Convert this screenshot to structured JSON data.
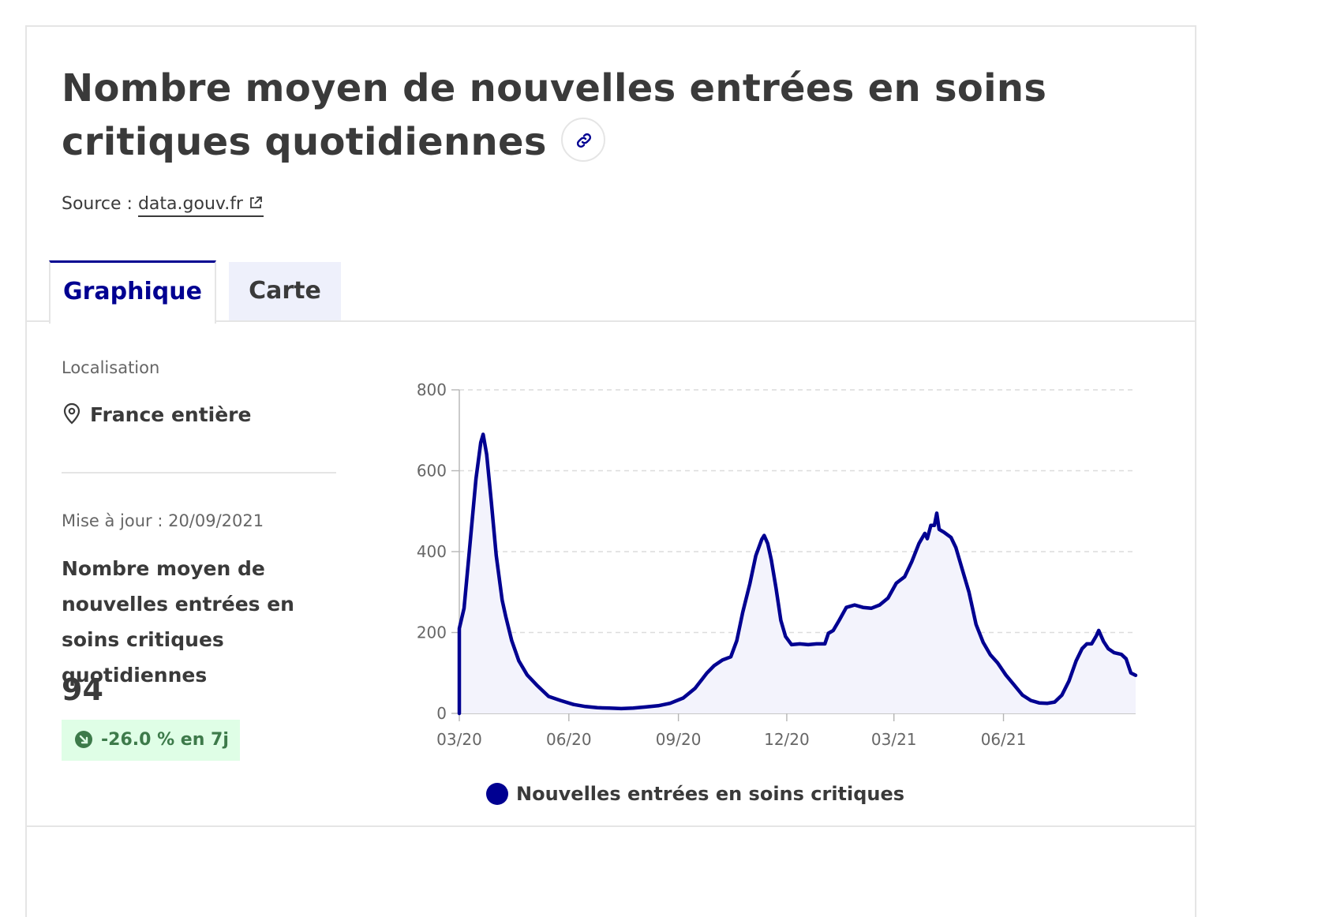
{
  "header": {
    "title": "Nombre moyen de nouvelles entrées en soins critiques quotidiennes",
    "source_label": "Source :",
    "source_link": "data.gouv.fr"
  },
  "tabs": [
    {
      "label": "Graphique",
      "active": true
    },
    {
      "label": "Carte",
      "active": false
    }
  ],
  "sidebar": {
    "location_label": "Localisation",
    "location_value": "France entière",
    "update_text": "Mise à jour : 20/09/2021",
    "indicator_name": "Nombre moyen de nouvelles entrées en soins critiques quotidiennes",
    "value": "94",
    "trend": "-26.0 % en 7j"
  },
  "colors": {
    "accent": "#000091",
    "series": "#000091",
    "fill": "#f3f3fc",
    "trend_bg": "#dffee6",
    "trend_text": "#3d7a4a"
  },
  "icons": {
    "link": "link-icon",
    "external": "external-link-icon",
    "location": "map-pin-icon",
    "trend": "arrow-down-right-icon"
  },
  "chart_data": {
    "type": "area",
    "title": "",
    "xlabel": "",
    "ylabel": "",
    "ylim": [
      0,
      800
    ],
    "yticks": [
      0,
      200,
      400,
      600,
      800
    ],
    "xticks": [
      "03/20",
      "06/20",
      "09/20",
      "12/20",
      "03/21",
      "06/21"
    ],
    "grid": "horizontal-dashed",
    "legend_position": "bottom",
    "series": [
      {
        "name": "Nouvelles entrées en soins critiques",
        "points": [
          [
            "2020-03-01",
            0
          ],
          [
            "2020-03-01",
            210
          ],
          [
            "2020-03-05",
            260
          ],
          [
            "2020-03-10",
            420
          ],
          [
            "2020-03-15",
            580
          ],
          [
            "2020-03-19",
            670
          ],
          [
            "2020-03-21",
            690
          ],
          [
            "2020-03-24",
            640
          ],
          [
            "2020-03-28",
            520
          ],
          [
            "2020-04-01",
            390
          ],
          [
            "2020-04-06",
            280
          ],
          [
            "2020-04-09",
            240
          ],
          [
            "2020-04-14",
            180
          ],
          [
            "2020-04-20",
            130
          ],
          [
            "2020-04-27",
            95
          ],
          [
            "2020-05-05",
            70
          ],
          [
            "2020-05-15",
            42
          ],
          [
            "2020-05-25",
            32
          ],
          [
            "2020-06-05",
            22
          ],
          [
            "2020-06-15",
            17
          ],
          [
            "2020-06-25",
            14
          ],
          [
            "2020-07-05",
            13
          ],
          [
            "2020-07-15",
            12
          ],
          [
            "2020-07-25",
            13
          ],
          [
            "2020-08-05",
            16
          ],
          [
            "2020-08-15",
            19
          ],
          [
            "2020-08-25",
            25
          ],
          [
            "2020-09-05",
            38
          ],
          [
            "2020-09-15",
            62
          ],
          [
            "2020-09-25",
            100
          ],
          [
            "2020-10-01",
            118
          ],
          [
            "2020-10-08",
            132
          ],
          [
            "2020-10-15",
            140
          ],
          [
            "2020-10-20",
            180
          ],
          [
            "2020-10-25",
            250
          ],
          [
            "2020-10-31",
            320
          ],
          [
            "2020-11-05",
            390
          ],
          [
            "2020-11-10",
            430
          ],
          [
            "2020-11-12",
            440
          ],
          [
            "2020-11-15",
            420
          ],
          [
            "2020-11-18",
            380
          ],
          [
            "2020-11-22",
            310
          ],
          [
            "2020-11-26",
            230
          ],
          [
            "2020-11-30",
            190
          ],
          [
            "2020-12-05",
            170
          ],
          [
            "2020-12-12",
            172
          ],
          [
            "2020-12-19",
            170
          ],
          [
            "2020-12-26",
            172
          ],
          [
            "2021-01-02",
            172
          ],
          [
            "2021-01-05",
            198
          ],
          [
            "2021-01-09",
            205
          ],
          [
            "2021-01-14",
            230
          ],
          [
            "2021-01-20",
            262
          ],
          [
            "2021-01-27",
            268
          ],
          [
            "2021-02-03",
            262
          ],
          [
            "2021-02-10",
            260
          ],
          [
            "2021-02-17",
            268
          ],
          [
            "2021-02-24",
            285
          ],
          [
            "2021-03-03",
            322
          ],
          [
            "2021-03-10",
            338
          ],
          [
            "2021-03-16",
            375
          ],
          [
            "2021-03-22",
            420
          ],
          [
            "2021-03-27",
            445
          ],
          [
            "2021-03-29",
            432
          ],
          [
            "2021-04-01",
            465
          ],
          [
            "2021-04-04",
            465
          ],
          [
            "2021-04-06",
            495
          ],
          [
            "2021-04-08",
            455
          ],
          [
            "2021-04-12",
            448
          ],
          [
            "2021-04-18",
            435
          ],
          [
            "2021-04-22",
            410
          ],
          [
            "2021-04-27",
            360
          ],
          [
            "2021-05-03",
            300
          ],
          [
            "2021-05-09",
            220
          ],
          [
            "2021-05-15",
            175
          ],
          [
            "2021-05-21",
            145
          ],
          [
            "2021-05-27",
            125
          ],
          [
            "2021-06-03",
            95
          ],
          [
            "2021-06-10",
            70
          ],
          [
            "2021-06-17",
            45
          ],
          [
            "2021-06-24",
            32
          ],
          [
            "2021-07-01",
            26
          ],
          [
            "2021-07-08",
            25
          ],
          [
            "2021-07-14",
            28
          ],
          [
            "2021-07-20",
            45
          ],
          [
            "2021-07-26",
            80
          ],
          [
            "2021-08-01",
            130
          ],
          [
            "2021-08-06",
            160
          ],
          [
            "2021-08-10",
            172
          ],
          [
            "2021-08-14",
            172
          ],
          [
            "2021-08-18",
            192
          ],
          [
            "2021-08-20",
            205
          ],
          [
            "2021-08-24",
            178
          ],
          [
            "2021-08-28",
            160
          ],
          [
            "2021-09-02",
            150
          ],
          [
            "2021-09-08",
            146
          ],
          [
            "2021-09-12",
            135
          ],
          [
            "2021-09-16",
            100
          ],
          [
            "2021-09-20",
            94
          ]
        ]
      }
    ]
  }
}
